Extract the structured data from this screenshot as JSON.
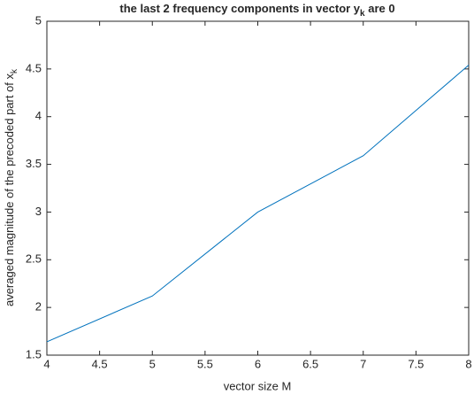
{
  "chart_data": {
    "type": "line",
    "title": [
      "the last 2 frequency components in vector y",
      "k",
      " are 0"
    ],
    "xlabel": "vector size M",
    "ylabel": [
      "averaged magnitude of the precoded part of x",
      "k"
    ],
    "x": [
      4,
      5,
      6,
      7,
      8
    ],
    "series": [
      {
        "color": "#0072bd",
        "values": [
          1.64,
          2.12,
          3.0,
          3.59,
          4.54
        ]
      }
    ],
    "xlim": [
      4,
      8
    ],
    "xticks": [
      4,
      4.5,
      5,
      5.5,
      6,
      6.5,
      7,
      7.5,
      8
    ],
    "ylim": [
      1.5,
      5
    ],
    "yticks": [
      1.5,
      2,
      2.5,
      3,
      3.5,
      4,
      4.5,
      5
    ],
    "grid": false
  }
}
